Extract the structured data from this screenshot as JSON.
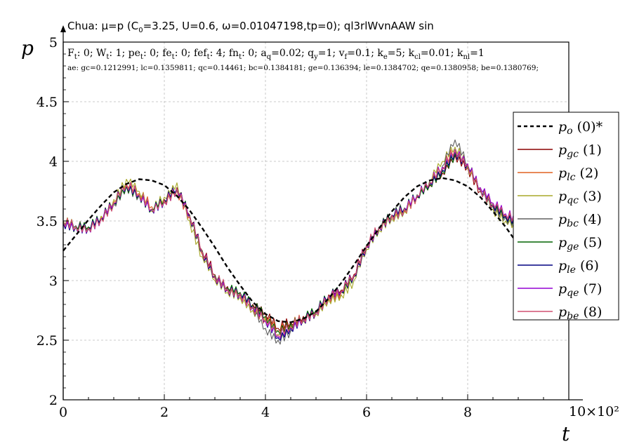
{
  "title_line": {
    "prefix": "Chua: μ=p (C",
    "sub0": "0",
    "rest": "=3.25, U=0.6, ω=0.01047198,tp=0); ql3rlWvnAAW sin"
  },
  "info_line_1": [
    {
      "t": "F"
    },
    {
      "s": "t"
    },
    {
      "t": ": 0; W"
    },
    {
      "s": "t"
    },
    {
      "t": ": 1; pe"
    },
    {
      "s": "t"
    },
    {
      "t": ": 0; fe"
    },
    {
      "s": "t"
    },
    {
      "t": ": 0; fef"
    },
    {
      "s": "t"
    },
    {
      "t": ": 4; fn"
    },
    {
      "s": "t"
    },
    {
      "t": ": 0; a"
    },
    {
      "s": "q"
    },
    {
      "t": "=0.02; q"
    },
    {
      "s": "y"
    },
    {
      "t": "=1; v"
    },
    {
      "s": "f"
    },
    {
      "t": "=0.1; k"
    },
    {
      "s": "e"
    },
    {
      "t": "=5; k"
    },
    {
      "s": "cl"
    },
    {
      "t": "=0.01; k"
    },
    {
      "s": "nl"
    },
    {
      "t": "=1"
    }
  ],
  "info_line_2": "ae: gc=0.1212991; lc=0.1359811; qc=0.14461; bc=0.1384181; ge=0.136394; le=0.1384702; qe=0.1380958; be=0.1380769;",
  "chart_data": {
    "type": "line",
    "xlabel": "t",
    "ylabel": "p",
    "x_multiplier": "10×10²",
    "xlim": [
      0,
      10
    ],
    "ylim": [
      2,
      5
    ],
    "xticks": [
      "0",
      "2",
      "4",
      "6",
      "8"
    ],
    "yticks": [
      "2",
      "2.5",
      "3",
      "3.5",
      "4",
      "4.5",
      "5"
    ],
    "grid": true,
    "legend_position": "right",
    "series": [
      {
        "name": "p_o",
        "sub": "o",
        "suffix": " (0)*",
        "color": "#000000",
        "dashed": true,
        "x": [
          0,
          0.25,
          0.5,
          0.75,
          1,
          1.25,
          1.5,
          1.75,
          2,
          2.25,
          2.5,
          2.75,
          3,
          3.25,
          3.5,
          3.75,
          4,
          4.25,
          4.5,
          4.75,
          5,
          5.25,
          5.5,
          5.75,
          6,
          6.25,
          6.5,
          6.75,
          7,
          7.25,
          7.5,
          7.75,
          8,
          8.25,
          8.5,
          8.75,
          9
        ],
        "values": [
          3.25,
          3.38,
          3.51,
          3.63,
          3.74,
          3.81,
          3.85,
          3.84,
          3.8,
          3.71,
          3.59,
          3.44,
          3.28,
          3.11,
          2.96,
          2.82,
          2.72,
          2.66,
          2.65,
          2.68,
          2.74,
          2.85,
          2.98,
          3.13,
          3.29,
          3.44,
          3.58,
          3.7,
          3.79,
          3.84,
          3.86,
          3.84,
          3.79,
          3.7,
          3.58,
          3.45,
          3.3
        ]
      },
      {
        "name": "p_gc",
        "sub": "gc",
        "suffix": " (1)",
        "color": "#8b0000",
        "x": [
          0,
          0.25,
          0.5,
          0.75,
          1,
          1.25,
          1.5,
          1.75,
          2,
          2.25,
          2.5,
          2.75,
          3,
          3.25,
          3.5,
          3.75,
          4,
          4.25,
          4.5,
          4.75,
          5,
          5.25,
          5.5,
          5.75,
          6,
          6.25,
          6.5,
          6.75,
          7,
          7.25,
          7.5,
          7.75,
          8,
          8.25,
          8.5,
          8.75,
          9
        ],
        "values": [
          3.49,
          3.45,
          3.44,
          3.52,
          3.65,
          3.8,
          3.72,
          3.6,
          3.68,
          3.78,
          3.55,
          3.25,
          3.05,
          2.95,
          2.9,
          2.8,
          2.72,
          2.6,
          2.65,
          2.7,
          2.75,
          2.88,
          2.92,
          3.05,
          3.3,
          3.45,
          3.55,
          3.6,
          3.7,
          3.8,
          3.9,
          4.05,
          3.95,
          3.75,
          3.65,
          3.55,
          3.5
        ]
      },
      {
        "name": "p_lc",
        "sub": "lc",
        "suffix": " (2)",
        "color": "#e06020",
        "x": [
          0,
          0.25,
          0.5,
          0.75,
          1,
          1.25,
          1.5,
          1.75,
          2,
          2.25,
          2.5,
          2.75,
          3,
          3.25,
          3.5,
          3.75,
          4,
          4.25,
          4.5,
          4.75,
          5,
          5.25,
          5.5,
          5.75,
          6,
          6.25,
          6.5,
          6.75,
          7,
          7.25,
          7.5,
          7.75,
          8,
          8.25,
          8.5,
          8.75,
          9
        ],
        "values": [
          3.48,
          3.45,
          3.45,
          3.53,
          3.66,
          3.81,
          3.73,
          3.62,
          3.66,
          3.76,
          3.53,
          3.22,
          3.02,
          2.92,
          2.88,
          2.78,
          2.7,
          2.58,
          2.63,
          2.68,
          2.74,
          2.86,
          2.9,
          3.03,
          3.28,
          3.44,
          3.54,
          3.59,
          3.71,
          3.82,
          3.95,
          4.1,
          3.98,
          3.77,
          3.63,
          3.54,
          3.49
        ]
      },
      {
        "name": "p_qc",
        "sub": "qc",
        "suffix": " (3)",
        "color": "#a8a828",
        "x": [
          0,
          0.25,
          0.5,
          0.75,
          1,
          1.25,
          1.5,
          1.75,
          2,
          2.25,
          2.5,
          2.75,
          3,
          3.25,
          3.5,
          3.75,
          4,
          4.25,
          4.5,
          4.75,
          5,
          5.25,
          5.5,
          5.75,
          6,
          6.25,
          6.5,
          6.75,
          7,
          7.25,
          7.5,
          7.75,
          8,
          8.25,
          8.5,
          8.75,
          9
        ],
        "values": [
          3.5,
          3.46,
          3.43,
          3.54,
          3.68,
          3.85,
          3.75,
          3.58,
          3.7,
          3.82,
          3.5,
          3.2,
          3.0,
          2.9,
          2.86,
          2.75,
          2.68,
          2.55,
          2.62,
          2.66,
          2.72,
          2.84,
          2.88,
          3.0,
          3.26,
          3.42,
          3.52,
          3.58,
          3.72,
          3.84,
          4.0,
          4.12,
          3.95,
          3.78,
          3.6,
          3.5,
          3.42
        ]
      },
      {
        "name": "p_bc",
        "sub": "bc",
        "suffix": " (4)",
        "color": "#606060",
        "x": [
          0,
          0.25,
          0.5,
          0.75,
          1,
          1.25,
          1.5,
          1.75,
          2,
          2.25,
          2.5,
          2.75,
          3,
          3.25,
          3.5,
          3.75,
          4,
          4.25,
          4.5,
          4.75,
          5,
          5.25,
          5.5,
          5.75,
          6,
          6.25,
          6.5,
          6.75,
          7,
          7.25,
          7.5,
          7.75,
          8,
          8.25,
          8.5,
          8.75,
          9
        ],
        "values": [
          3.49,
          3.46,
          3.44,
          3.52,
          3.64,
          3.79,
          3.71,
          3.59,
          3.67,
          3.77,
          3.54,
          3.24,
          3.04,
          2.93,
          2.89,
          2.77,
          2.6,
          2.5,
          2.58,
          2.67,
          2.73,
          2.87,
          2.91,
          3.04,
          3.29,
          3.45,
          3.55,
          3.61,
          3.72,
          3.83,
          3.96,
          4.18,
          3.97,
          3.76,
          3.62,
          3.53,
          3.48
        ]
      },
      {
        "name": "p_ge",
        "sub": "ge",
        "suffix": " (5)",
        "color": "#006400",
        "x": [
          0,
          0.25,
          0.5,
          0.75,
          1,
          1.25,
          1.5,
          1.75,
          2,
          2.25,
          2.5,
          2.75,
          3,
          3.25,
          3.5,
          3.75,
          4,
          4.25,
          4.5,
          4.75,
          5,
          5.25,
          5.5,
          5.75,
          6,
          6.25,
          6.5,
          6.75,
          7,
          7.25,
          7.5,
          7.75,
          8,
          8.25,
          8.5,
          8.75,
          9
        ],
        "values": [
          3.49,
          3.45,
          3.45,
          3.52,
          3.65,
          3.79,
          3.72,
          3.6,
          3.67,
          3.76,
          3.55,
          3.25,
          3.04,
          2.94,
          2.9,
          2.79,
          2.7,
          2.58,
          2.64,
          2.69,
          2.75,
          2.87,
          2.91,
          3.04,
          3.3,
          3.45,
          3.55,
          3.6,
          3.71,
          3.81,
          3.92,
          4.06,
          3.96,
          3.76,
          3.64,
          3.54,
          3.49
        ]
      },
      {
        "name": "p_le",
        "sub": "le",
        "suffix": " (6)",
        "color": "#000080",
        "x": [
          0,
          0.25,
          0.5,
          0.75,
          1,
          1.25,
          1.5,
          1.75,
          2,
          2.25,
          2.5,
          2.75,
          3,
          3.25,
          3.5,
          3.75,
          4,
          4.25,
          4.5,
          4.75,
          5,
          5.25,
          5.5,
          5.75,
          6,
          6.25,
          6.5,
          6.75,
          7,
          7.25,
          7.5,
          7.75,
          8,
          8.25,
          8.5,
          8.75,
          9
        ],
        "values": [
          3.48,
          3.45,
          3.44,
          3.52,
          3.65,
          3.8,
          3.72,
          3.6,
          3.67,
          3.77,
          3.54,
          3.24,
          3.03,
          2.93,
          2.89,
          2.78,
          2.66,
          2.52,
          2.6,
          2.68,
          2.74,
          2.87,
          2.91,
          3.04,
          3.29,
          3.45,
          3.55,
          3.6,
          3.71,
          3.82,
          3.93,
          4.08,
          3.97,
          3.76,
          3.63,
          3.54,
          3.49
        ]
      },
      {
        "name": "p_qe",
        "sub": "qe",
        "suffix": " (7)",
        "color": "#9400d3",
        "x": [
          0,
          0.25,
          0.5,
          0.75,
          1,
          1.25,
          1.5,
          1.75,
          2,
          2.25,
          2.5,
          2.75,
          3,
          3.25,
          3.5,
          3.75,
          4,
          4.25,
          4.5,
          4.75,
          5,
          5.25,
          5.5,
          5.75,
          6,
          6.25,
          6.5,
          6.75,
          7,
          7.25,
          7.5,
          7.75,
          8,
          8.25,
          8.5,
          8.75,
          9
        ],
        "values": [
          3.49,
          3.45,
          3.44,
          3.52,
          3.65,
          3.8,
          3.72,
          3.6,
          3.67,
          3.77,
          3.54,
          3.24,
          3.03,
          2.93,
          2.89,
          2.78,
          2.66,
          2.53,
          2.61,
          2.68,
          2.74,
          2.87,
          2.91,
          3.04,
          3.29,
          3.45,
          3.55,
          3.6,
          3.71,
          3.82,
          3.95,
          4.1,
          3.98,
          3.78,
          3.65,
          3.56,
          3.5
        ]
      },
      {
        "name": "p_be",
        "sub": "be",
        "suffix": " (8)",
        "color": "#d05070",
        "x": [
          0,
          0.25,
          0.5,
          0.75,
          1,
          1.25,
          1.5,
          1.75,
          2,
          2.25,
          2.5,
          2.75,
          3,
          3.25,
          3.5,
          3.75,
          4,
          4.25,
          4.5,
          4.75,
          5,
          5.25,
          5.5,
          5.75,
          6,
          6.25,
          6.5,
          6.75,
          7,
          7.25,
          7.5,
          7.75,
          8,
          8.25,
          8.5,
          8.75,
          9
        ],
        "values": [
          3.49,
          3.45,
          3.44,
          3.52,
          3.65,
          3.8,
          3.72,
          3.6,
          3.67,
          3.77,
          3.54,
          3.24,
          3.03,
          2.93,
          2.89,
          2.78,
          2.67,
          2.54,
          2.61,
          2.68,
          2.74,
          2.87,
          2.91,
          3.04,
          3.29,
          3.45,
          3.55,
          3.6,
          3.71,
          3.82,
          3.94,
          4.09,
          3.97,
          3.77,
          3.64,
          3.55,
          3.49
        ]
      }
    ]
  }
}
